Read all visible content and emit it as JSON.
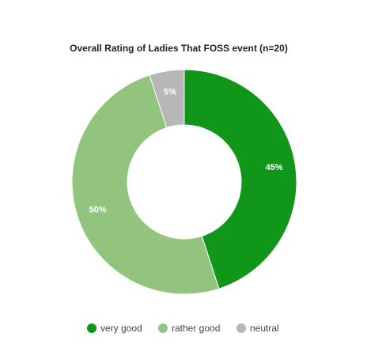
{
  "chart_data": {
    "type": "donut",
    "title": "Overall Rating of Ladies That FOSS event (n=20)",
    "categories": [
      "very good",
      "rather good",
      "neutral"
    ],
    "values": [
      45,
      50,
      5
    ],
    "value_labels": [
      "45%",
      "50%",
      "5%"
    ],
    "colors": [
      "#109618",
      "#93c47d",
      "#b7b7b7"
    ],
    "legend": "bottom"
  }
}
